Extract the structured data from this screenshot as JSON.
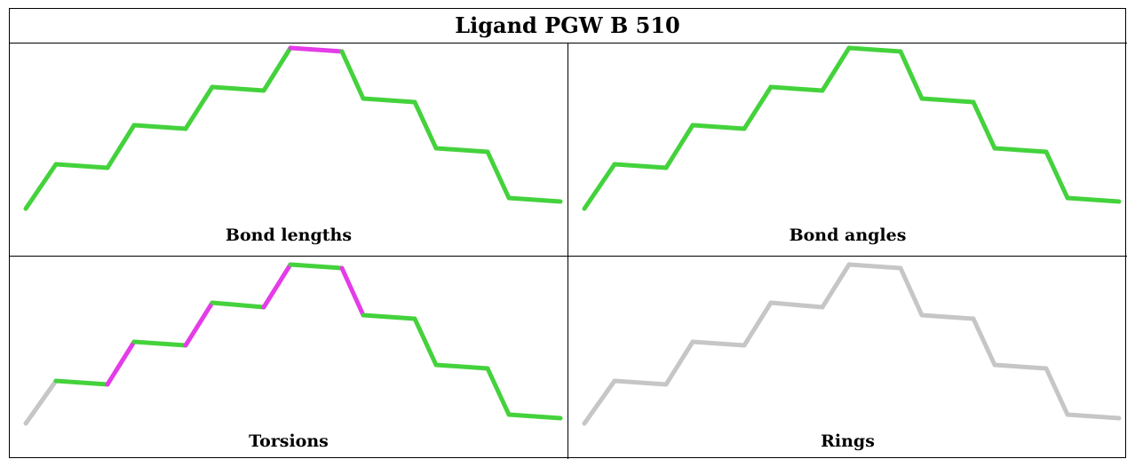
{
  "title": "Ligand PGW B 510",
  "colors": {
    "green": "#44d23c",
    "magenta": "#e43ce8",
    "gray": "#c6c6c6"
  },
  "panels": [
    {
      "caption": "Bond lengths",
      "segments": [
        "green",
        "green",
        "green",
        "green",
        "green",
        "green",
        "green",
        "magenta",
        "green",
        "green",
        "green",
        "green",
        "green",
        "green",
        "green",
        "green"
      ]
    },
    {
      "caption": "Bond angles",
      "segments": [
        "green",
        "green",
        "green",
        "green",
        "green",
        "green",
        "green",
        "green",
        "green",
        "green",
        "green",
        "green",
        "green",
        "green",
        "green",
        "green"
      ]
    },
    {
      "caption": "Torsions",
      "segments": [
        "gray",
        "green",
        "magenta",
        "green",
        "magenta",
        "green",
        "magenta",
        "green",
        "magenta",
        "green",
        "green",
        "green",
        "green",
        "green",
        "green",
        "gray"
      ]
    },
    {
      "caption": "Rings",
      "segments": [
        "gray",
        "gray",
        "gray",
        "gray",
        "gray",
        "gray",
        "gray",
        "gray",
        "gray",
        "gray",
        "gray",
        "gray",
        "gray",
        "gray",
        "gray",
        "gray"
      ]
    }
  ]
}
